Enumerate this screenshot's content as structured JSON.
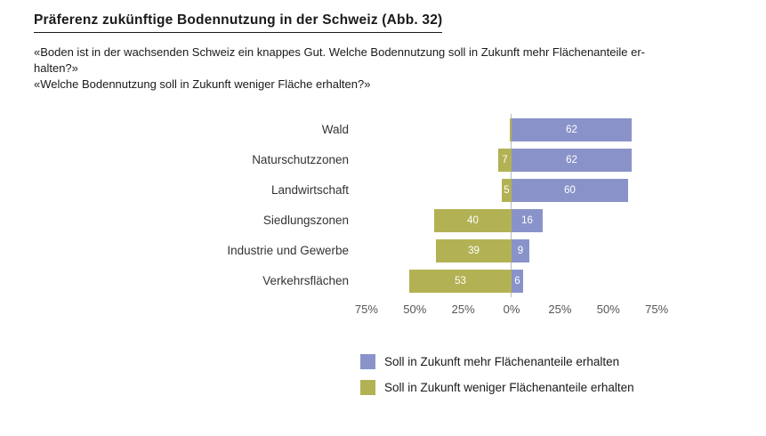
{
  "title": "Präferenz zukünftige Bodennutzung in der Schweiz  (Abb. 32)",
  "subtitle_lines": [
    "«Boden ist in der wachsenden Schweiz ein knappes Gut. Welche Bodennutzung soll in Zukunft mehr Flächenanteile er-",
    "halten?»",
    "«Welche Bodennutzung soll in Zukunft weniger Fläche erhalten?»"
  ],
  "chart_data": {
    "type": "bar",
    "orientation": "horizontal-diverging",
    "title": "Präferenz zukünftige Bodennutzung in der Schweiz (Abb. 32)",
    "categories": [
      "Wald",
      "Naturschutzzonen",
      "Landwirtschaft",
      "Siedlungszonen",
      "Industrie und Gewerbe",
      "Verkehrsflächen"
    ],
    "series": [
      {
        "name": "Soll in Zukunft mehr Flächenanteile erhalten",
        "direction": "right",
        "color": "#8A93C9",
        "values": [
          62,
          62,
          60,
          16,
          9,
          6
        ]
      },
      {
        "name": "Soll in Zukunft weniger Flächenanteile erhalten",
        "direction": "left",
        "color": "#B2B254",
        "values": [
          1,
          7,
          5,
          40,
          39,
          53
        ]
      }
    ],
    "x_tick_labels": [
      "75%",
      "50%",
      "25%",
      "0%",
      "25%",
      "50%",
      "75%"
    ],
    "x_tick_values": [
      -75,
      -50,
      -25,
      0,
      25,
      50,
      75
    ],
    "xlim": [
      -75,
      75
    ],
    "grid": false,
    "legend_position": "bottom-right",
    "value_label_min": 4
  }
}
